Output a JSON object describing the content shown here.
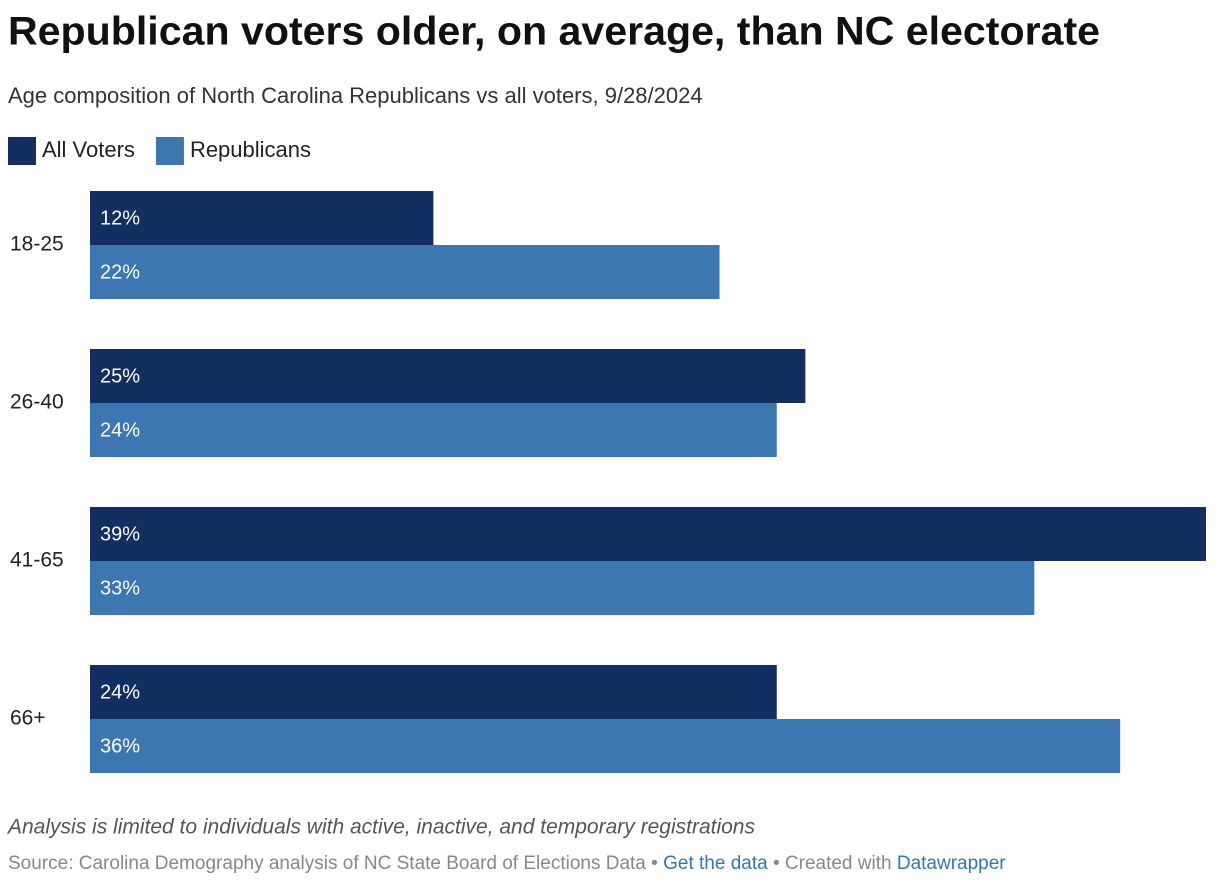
{
  "chart_data": {
    "type": "grouped_bar_horizontal",
    "title": "Republican voters older, on average, than NC electorate",
    "subtitle": "Age composition of North Carolina Republicans vs all voters, 9/28/2024",
    "categories": [
      "18-25",
      "26-40",
      "41-65",
      "66+"
    ],
    "series": [
      {
        "name": "All Voters",
        "color": "#132f62",
        "values": [
          12,
          25,
          39,
          24
        ],
        "value_labels": [
          "12%",
          "25%",
          "39%",
          "24%"
        ]
      },
      {
        "name": "Republicans",
        "color": "#3c77b2",
        "values": [
          22,
          24,
          33,
          36
        ],
        "value_labels": [
          "22%",
          "24%",
          "33%",
          "36%"
        ]
      }
    ],
    "note": "Analysis is limited to individuals with active, inactive, and temporary registrations",
    "source": "Source: Carolina Demography analysis of NC State Board of Elections Data",
    "separator": "•",
    "get_data": "Get the data",
    "created_with": "Created with",
    "tool": "Datawrapper"
  }
}
